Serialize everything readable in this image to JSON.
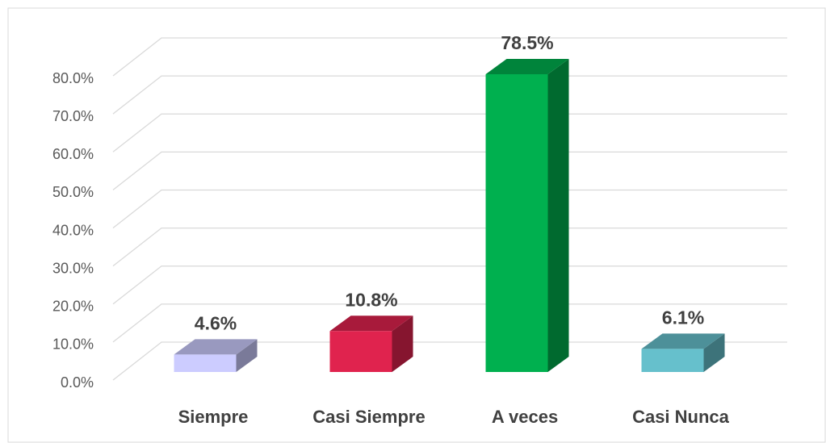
{
  "chart_data": {
    "type": "bar3d",
    "categories": [
      "Siempre",
      "Casi Siempre",
      "A veces",
      "Casi Nunca"
    ],
    "values": [
      4.6,
      10.8,
      78.5,
      6.1
    ],
    "value_labels": [
      "4.6%",
      "10.8%",
      "78.5%",
      "6.1%"
    ],
    "colors": [
      "#ccccff",
      "#e0234e",
      "#00b04f",
      "#66c0cc"
    ],
    "ylim": [
      0,
      80
    ],
    "yticks": [
      {
        "value": 0,
        "label": "0.0%"
      },
      {
        "value": 10,
        "label": "10.0%"
      },
      {
        "value": 20,
        "label": "20.0%"
      },
      {
        "value": 30,
        "label": "30.0%"
      },
      {
        "value": 40,
        "label": "40.0%"
      },
      {
        "value": 50,
        "label": "50.0%"
      },
      {
        "value": 60,
        "label": "60.0%"
      },
      {
        "value": 70,
        "label": "70.0%"
      },
      {
        "value": 80,
        "label": "80.0%"
      }
    ],
    "grid": true
  }
}
